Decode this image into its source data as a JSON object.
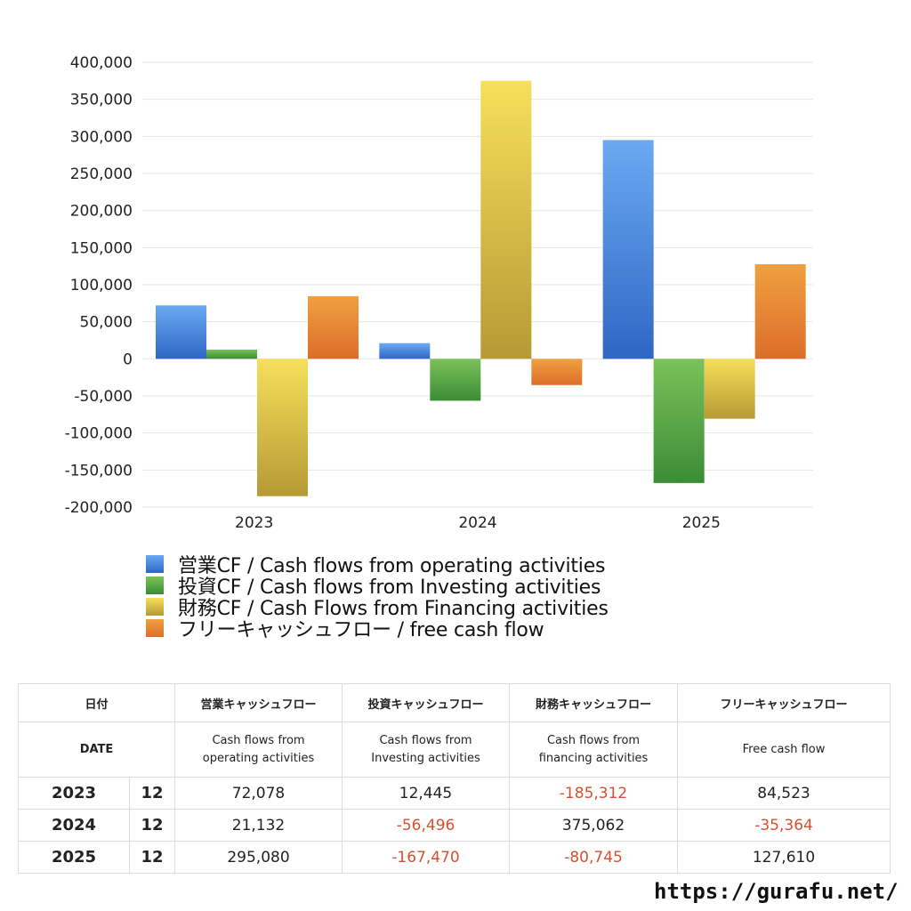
{
  "chart_data": {
    "type": "bar",
    "categories": [
      "2023",
      "2024",
      "2025"
    ],
    "series": [
      {
        "name": "営業CF / Cash flows from operating activities",
        "values": [
          72078,
          21132,
          295080
        ],
        "color_top": "#6ba9f2",
        "color_bottom": "#2e67c4"
      },
      {
        "name": "投資CF / Cash flows from Investing activities",
        "values": [
          12445,
          -56496,
          -167470
        ],
        "color_top": "#7cc15a",
        "color_bottom": "#3a8d35"
      },
      {
        "name": "財務CF / Cash Flows from Financing activities",
        "values": [
          -185312,
          375062,
          -80745
        ],
        "color_top": "#f6e05a",
        "color_bottom": "#b69a35"
      },
      {
        "name": "フリーキャッシュフロー / free cash flow",
        "values": [
          84523,
          -35364,
          127610
        ],
        "color_top": "#f0a040",
        "color_bottom": "#dc6e2a"
      }
    ],
    "yticks": [
      "400,000",
      "350,000",
      "300,000",
      "250,000",
      "200,000",
      "150,000",
      "100,000",
      "50,000",
      "0",
      "-50,000",
      "-100,000",
      "-150,000",
      "-200,000"
    ],
    "ylim": [
      -200000,
      400000
    ],
    "grid": true,
    "legend_position": "bottom"
  },
  "table": {
    "header_jp": [
      "日付",
      "営業キャッシュフロー",
      "投資キャッシュフロー",
      "財務キャッシュフロー",
      "フリーキャッシュフロー"
    ],
    "header_en": [
      "DATE",
      "Cash flows from\noperating activities",
      "Cash flows from\nInvesting activities",
      "Cash flows from\nfinancing activities",
      "Free cash flow"
    ],
    "rows": [
      {
        "year": "2023",
        "month": "12",
        "values": [
          "72,078",
          "12,445",
          "-185,312",
          "84,523"
        ]
      },
      {
        "year": "2024",
        "month": "12",
        "values": [
          "21,132",
          "-56,496",
          "375,062",
          "-35,364"
        ]
      },
      {
        "year": "2025",
        "month": "12",
        "values": [
          "295,080",
          "-167,470",
          "-80,745",
          "127,610"
        ]
      }
    ]
  },
  "site_url": "https://gurafu.net/"
}
